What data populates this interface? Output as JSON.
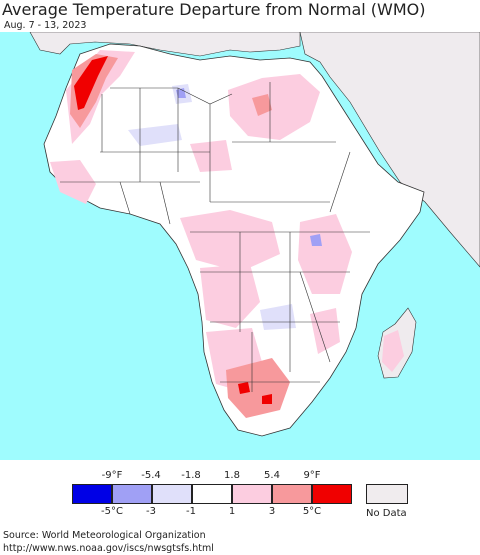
{
  "title": "Average Temperature Departure from Normal (WMO)",
  "date_range": "Aug. 7 - 13, 2023",
  "legend": {
    "top_labels": [
      "-9°F",
      "-5.4",
      "-1.8",
      "1.8",
      "5.4",
      "9°F"
    ],
    "bottom_labels": [
      "-5°C",
      "-3",
      "-1",
      "1",
      "3",
      "5°C"
    ],
    "colors": [
      "#0000e6",
      "#a0a0f5",
      "#e0e0fa",
      "#ffffff",
      "#fccde0",
      "#f7999c",
      "#f00000"
    ],
    "no_data_label": "No Data",
    "no_data_color": "#f0ecee"
  },
  "map": {
    "ocean_color": "#9ffcfe",
    "land_color": "#ffffff",
    "no_data_land_color": "#efebee",
    "border_color": "#333333"
  },
  "source": {
    "line1": "Source: World Meteorological Organization",
    "line2": "http://www.nws.noaa.gov/iscs/nwsgtsfs.html"
  }
}
